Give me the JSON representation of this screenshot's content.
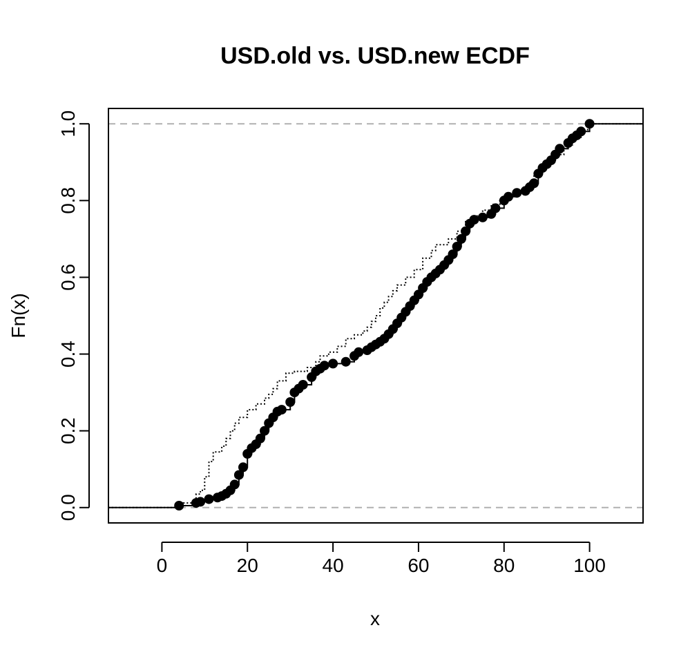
{
  "chart_data": {
    "type": "line",
    "title": "USD.old vs. USD.new ECDF",
    "xlabel": "x",
    "ylabel": "Fn(x)",
    "xlim": [
      -12.5,
      112.5
    ],
    "ylim": [
      -0.04,
      1.04
    ],
    "x_ticks": [
      "0",
      "20",
      "40",
      "60",
      "80",
      "100"
    ],
    "y_ticks": [
      "0.0",
      "0.2",
      "0.4",
      "0.6",
      "0.8",
      "1.0"
    ],
    "reference_lines": [
      0,
      1
    ],
    "grid": false,
    "legend": "none",
    "series": [
      {
        "style": "points",
        "points": [
          [
            4,
            0.005
          ],
          [
            8,
            0.012
          ],
          [
            9,
            0.015
          ],
          [
            11,
            0.022
          ],
          [
            13,
            0.026
          ],
          [
            14,
            0.03
          ],
          [
            15,
            0.036
          ],
          [
            16,
            0.045
          ],
          [
            17,
            0.06
          ],
          [
            18,
            0.085
          ],
          [
            19,
            0.105
          ],
          [
            20,
            0.14
          ],
          [
            21,
            0.155
          ],
          [
            22,
            0.165
          ],
          [
            23,
            0.18
          ],
          [
            24,
            0.2
          ],
          [
            25,
            0.22
          ],
          [
            26,
            0.235
          ],
          [
            27,
            0.25
          ],
          [
            28,
            0.255
          ],
          [
            30,
            0.275
          ],
          [
            31,
            0.3
          ],
          [
            32,
            0.31
          ],
          [
            33,
            0.32
          ],
          [
            35,
            0.34
          ],
          [
            36,
            0.355
          ],
          [
            37,
            0.362
          ],
          [
            38,
            0.37
          ],
          [
            40,
            0.375
          ],
          [
            43,
            0.38
          ],
          [
            45,
            0.395
          ],
          [
            46,
            0.405
          ],
          [
            48,
            0.41
          ],
          [
            49,
            0.418
          ],
          [
            50,
            0.425
          ],
          [
            51,
            0.432
          ],
          [
            52,
            0.44
          ],
          [
            53,
            0.452
          ],
          [
            54,
            0.465
          ],
          [
            55,
            0.48
          ],
          [
            56,
            0.495
          ],
          [
            57,
            0.51
          ],
          [
            58,
            0.525
          ],
          [
            59,
            0.54
          ],
          [
            60,
            0.555
          ],
          [
            61,
            0.572
          ],
          [
            62,
            0.588
          ],
          [
            63,
            0.6
          ],
          [
            64,
            0.61
          ],
          [
            65,
            0.62
          ],
          [
            66,
            0.632
          ],
          [
            67,
            0.645
          ],
          [
            68,
            0.66
          ],
          [
            69,
            0.68
          ],
          [
            70,
            0.7
          ],
          [
            71,
            0.72
          ],
          [
            72,
            0.74
          ],
          [
            73,
            0.75
          ],
          [
            75,
            0.756
          ],
          [
            77,
            0.765
          ],
          [
            78,
            0.78
          ],
          [
            80,
            0.8
          ],
          [
            81,
            0.81
          ],
          [
            83,
            0.82
          ],
          [
            85,
            0.825
          ],
          [
            86,
            0.835
          ],
          [
            87,
            0.845
          ],
          [
            88,
            0.87
          ],
          [
            89,
            0.885
          ],
          [
            90,
            0.895
          ],
          [
            91,
            0.905
          ],
          [
            92,
            0.92
          ],
          [
            93,
            0.935
          ],
          [
            95,
            0.95
          ],
          [
            96,
            0.962
          ],
          [
            97,
            0.97
          ],
          [
            98,
            0.98
          ],
          [
            100,
            1.0
          ]
        ]
      },
      {
        "style": "dotted-step",
        "points": [
          [
            -12.5,
            0.0
          ],
          [
            0,
            0.0
          ],
          [
            5,
            0.012
          ],
          [
            8,
            0.035
          ],
          [
            9,
            0.045
          ],
          [
            10,
            0.08
          ],
          [
            11,
            0.12
          ],
          [
            12,
            0.145
          ],
          [
            14,
            0.16
          ],
          [
            15,
            0.18
          ],
          [
            16,
            0.2
          ],
          [
            17,
            0.22
          ],
          [
            18,
            0.235
          ],
          [
            20,
            0.255
          ],
          [
            22,
            0.27
          ],
          [
            24,
            0.285
          ],
          [
            25,
            0.295
          ],
          [
            26,
            0.31
          ],
          [
            27,
            0.33
          ],
          [
            29,
            0.35
          ],
          [
            31,
            0.355
          ],
          [
            34,
            0.365
          ],
          [
            36,
            0.38
          ],
          [
            37,
            0.395
          ],
          [
            39,
            0.405
          ],
          [
            41,
            0.42
          ],
          [
            43,
            0.44
          ],
          [
            45,
            0.45
          ],
          [
            47,
            0.46
          ],
          [
            48,
            0.47
          ],
          [
            49,
            0.485
          ],
          [
            50,
            0.5
          ],
          [
            51,
            0.52
          ],
          [
            52,
            0.535
          ],
          [
            53,
            0.55
          ],
          [
            54,
            0.565
          ],
          [
            55,
            0.58
          ],
          [
            57,
            0.6
          ],
          [
            59,
            0.62
          ],
          [
            61,
            0.65
          ],
          [
            63,
            0.67
          ],
          [
            64,
            0.685
          ],
          [
            67,
            0.7
          ],
          [
            69,
            0.72
          ],
          [
            71,
            0.745
          ],
          [
            73,
            0.76
          ],
          [
            75,
            0.775
          ],
          [
            77,
            0.79
          ],
          [
            79,
            0.805
          ],
          [
            81,
            0.82
          ],
          [
            84,
            0.83
          ],
          [
            86,
            0.85
          ],
          [
            87,
            0.87
          ],
          [
            88,
            0.885
          ],
          [
            90,
            0.9
          ],
          [
            92,
            0.92
          ],
          [
            94,
            0.945
          ],
          [
            96,
            0.965
          ],
          [
            98,
            0.985
          ],
          [
            100,
            1.0
          ],
          [
            112.5,
            1.0
          ]
        ]
      }
    ]
  }
}
